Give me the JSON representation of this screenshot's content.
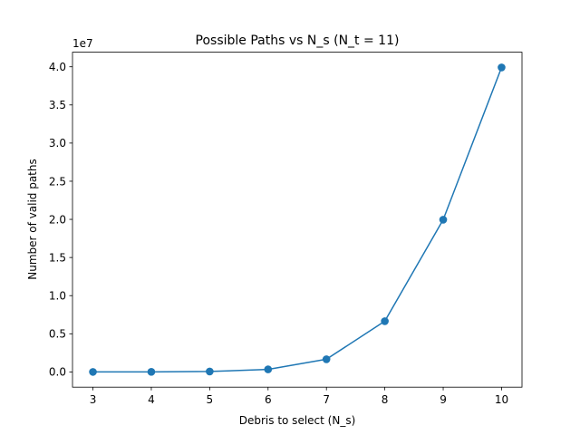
{
  "chart_data": {
    "type": "line",
    "title": "Possible Paths vs N_s (N_t = 11)",
    "xlabel": "Debris to select (N_s)",
    "ylabel": "Number of valid paths",
    "y_offset_label": "1e7",
    "x": [
      3,
      4,
      5,
      6,
      7,
      8,
      9,
      10
    ],
    "series": [
      {
        "values": [
          990,
          7920,
          55440,
          332640,
          1663200,
          6652800,
          19958400,
          39916800
        ],
        "color": "#1f77b4",
        "marker": "circle"
      }
    ],
    "xlim": [
      2.65,
      10.35
    ],
    "ylim": [
      -1995840,
      41912640
    ],
    "x_ticks": [
      3,
      4,
      5,
      6,
      7,
      8,
      9,
      10
    ],
    "x_tick_labels": [
      "3",
      "4",
      "5",
      "6",
      "7",
      "8",
      "9",
      "10"
    ],
    "y_ticks": [
      0,
      5000000,
      10000000,
      15000000,
      20000000,
      25000000,
      30000000,
      35000000,
      40000000
    ],
    "y_tick_labels": [
      "0.0",
      "0.5",
      "1.0",
      "1.5",
      "2.0",
      "2.5",
      "3.0",
      "3.5",
      "4.0"
    ],
    "grid": false,
    "legend": "none"
  }
}
